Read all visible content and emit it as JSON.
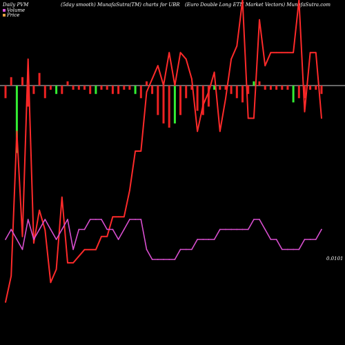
{
  "header": {
    "left": "Daily PVM",
    "middle": "(5day smooth) MunafaSutra(TM) charts for UBR",
    "right": "(Euro  Double  Long ETN  Market Vectors) MunafaSutra.com"
  },
  "legend": {
    "volume": "Volume",
    "price": "Price"
  },
  "colors": {
    "background": "#000000",
    "price_line": "#ff2a2a",
    "pvm_line": "#d94fd0",
    "bar_up": "#33ee33",
    "bar_down": "#ee2222",
    "zero_line": "#cfcfcf",
    "legend_volume_swatch": "#dd55dd",
    "legend_price_swatch": "#e6a040"
  },
  "chart_data": {
    "type": "line",
    "series": [
      {
        "name": "Price",
        "values": [
          2,
          6,
          28,
          12,
          39,
          11,
          16,
          13,
          5,
          7,
          18,
          8,
          8,
          9,
          10,
          10,
          10,
          12,
          12,
          15,
          15,
          15,
          19,
          25,
          25,
          34,
          36,
          38,
          35,
          40,
          35,
          40,
          39,
          36,
          28,
          32,
          34,
          37,
          28,
          33,
          39,
          41,
          48,
          30,
          30,
          45,
          38,
          40,
          40,
          40,
          40,
          40,
          48,
          31,
          40,
          40,
          30
        ]
      },
      {
        "name": "PVM",
        "values": [
          7,
          8,
          7,
          6,
          9,
          7,
          8,
          9,
          8,
          7,
          8,
          9,
          6,
          8,
          8,
          9,
          9,
          9,
          8,
          8,
          7,
          8,
          9,
          9,
          9,
          6,
          5,
          5,
          5,
          5,
          5,
          6,
          6,
          6,
          7,
          7,
          7,
          7,
          8,
          8,
          8,
          8,
          8,
          8,
          9,
          9,
          8,
          7,
          7,
          6,
          6,
          6,
          6,
          7,
          7,
          7,
          8
        ]
      },
      {
        "name": "Volume",
        "values": [
          -3,
          2,
          -16,
          2,
          -5,
          -2,
          3,
          -3,
          -1,
          -2,
          -2,
          1,
          -1,
          -1,
          -1,
          -2,
          -2,
          -1,
          -1,
          -2,
          -2,
          -1,
          -1,
          -2,
          -3,
          1,
          -2,
          -7,
          -9,
          -10,
          -9,
          -7,
          -3,
          -1,
          -6,
          -7,
          -5,
          -1,
          -1,
          -1,
          -2,
          -3,
          -4,
          -2,
          1,
          1,
          -1,
          -1,
          -1,
          -1,
          -1,
          -4,
          -3,
          -3,
          -1,
          -1,
          -2
        ]
      }
    ],
    "last_value_label": "0.0101"
  }
}
